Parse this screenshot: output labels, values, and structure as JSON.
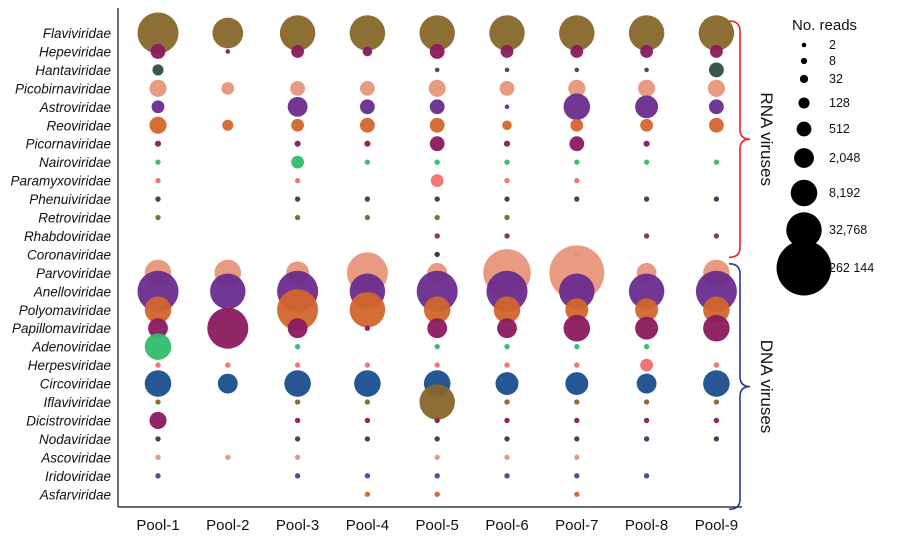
{
  "chart_data": {
    "type": "bubble",
    "title": "",
    "xlabel": "",
    "ylabel": "",
    "x_categories": [
      "Pool-1",
      "Pool-2",
      "Pool-3",
      "Pool-4",
      "Pool-5",
      "Pool-6",
      "Pool-7",
      "Pool-8",
      "Pool-9"
    ],
    "families": [
      {
        "name": "Flaviviridae",
        "group": "RNA",
        "color": "#87662a",
        "reads": [
          65536,
          16384,
          32768,
          32768,
          32768,
          32768,
          32768,
          32768,
          32768
        ]
      },
      {
        "name": "Hepeviridae",
        "group": "RNA",
        "color": "#8b1a5e",
        "reads": [
          512,
          2,
          256,
          64,
          512,
          256,
          256,
          256,
          256
        ]
      },
      {
        "name": "Hantaviridae",
        "group": "RNA",
        "color": "#2e4e48",
        "reads": [
          128,
          0,
          0,
          0,
          2,
          2,
          2,
          2,
          512
        ]
      },
      {
        "name": "Picobirnaviridae",
        "group": "RNA",
        "color": "#e8967a",
        "reads": [
          1024,
          256,
          512,
          512,
          1024,
          512,
          1024,
          1024,
          1024
        ]
      },
      {
        "name": "Astroviridae",
        "group": "RNA",
        "color": "#6a2c8e",
        "reads": [
          256,
          0,
          2048,
          512,
          512,
          2,
          8192,
          4096,
          512
        ]
      },
      {
        "name": "Reoviridae",
        "group": "RNA",
        "color": "#d2652c",
        "reads": [
          1024,
          128,
          256,
          512,
          512,
          64,
          256,
          256,
          512
        ]
      },
      {
        "name": "Picornaviridae",
        "group": "RNA",
        "color": "#8b1a5e",
        "reads": [
          8,
          0,
          8,
          8,
          512,
          8,
          512,
          8,
          0
        ]
      },
      {
        "name": "Nairoviridae",
        "group": "RNA",
        "color": "#2ebd6b",
        "reads": [
          4,
          0,
          256,
          4,
          4,
          4,
          4,
          4,
          4
        ]
      },
      {
        "name": "Paramyxoviridae",
        "group": "RNA",
        "color": "#f07070",
        "reads": [
          4,
          0,
          4,
          0,
          256,
          4,
          4,
          0,
          0
        ]
      },
      {
        "name": "Phenuiviridae",
        "group": "RNA",
        "color": "#2f3d55",
        "reads": [
          4,
          0,
          4,
          4,
          4,
          4,
          4,
          4,
          4
        ]
      },
      {
        "name": "Retroviridae",
        "group": "RNA",
        "color": "#7a6a20",
        "reads": [
          4,
          0,
          4,
          4,
          4,
          4,
          0,
          0,
          0
        ]
      },
      {
        "name": "Rhabdoviridae",
        "group": "RNA",
        "color": "#7a3a3a",
        "reads": [
          0,
          0,
          0,
          0,
          4,
          4,
          0,
          4,
          4
        ]
      },
      {
        "name": "Coronaviridae",
        "group": "RNA",
        "color": "#333333",
        "reads": [
          0,
          0,
          0,
          0,
          4,
          0,
          4,
          0,
          0
        ]
      },
      {
        "name": "Parvoviridae",
        "group": "DNA",
        "color": "#e8967a",
        "reads": [
          8192,
          8192,
          4096,
          65536,
          2048,
          131072,
          262144,
          2048,
          8192
        ]
      },
      {
        "name": "Anelloviridae",
        "group": "DNA",
        "color": "#6a2c8e",
        "reads": [
          65536,
          32768,
          65536,
          32768,
          65536,
          65536,
          32768,
          32768,
          65536
        ]
      },
      {
        "name": "Polyomaviridae",
        "group": "DNA",
        "color": "#d2652c",
        "reads": [
          8192,
          4,
          65536,
          32768,
          8192,
          8192,
          4096,
          4096,
          8192
        ]
      },
      {
        "name": "Papillomaviridae",
        "group": "DNA",
        "color": "#8b1a5e",
        "reads": [
          2048,
          65536,
          2048,
          4,
          2048,
          2048,
          8192,
          4096,
          8192
        ]
      },
      {
        "name": "Adenoviridae",
        "group": "DNA",
        "color": "#2ebd6b",
        "reads": [
          8192,
          0,
          4,
          0,
          4,
          4,
          4,
          4,
          0
        ]
      },
      {
        "name": "Herpesviridae",
        "group": "DNA",
        "color": "#f07070",
        "reads": [
          4,
          4,
          4,
          4,
          4,
          4,
          4,
          256,
          4
        ]
      },
      {
        "name": "Circoviridae",
        "group": "DNA",
        "color": "#1a4e8e",
        "reads": [
          8192,
          2048,
          8192,
          8192,
          8192,
          4096,
          4096,
          2048,
          8192
        ]
      },
      {
        "name": "Iflaviviridae",
        "group": "DNA",
        "color": "#87662a",
        "reads": [
          4,
          0,
          4,
          4,
          32768,
          4,
          4,
          4,
          4
        ]
      },
      {
        "name": "Dicistroviridae",
        "group": "DNA",
        "color": "#8b1a5e",
        "reads": [
          1024,
          0,
          4,
          4,
          4,
          4,
          4,
          4,
          4
        ]
      },
      {
        "name": "Nodaviridae",
        "group": "DNA",
        "color": "#2f3d55",
        "reads": [
          4,
          0,
          4,
          4,
          4,
          4,
          4,
          4,
          4
        ]
      },
      {
        "name": "Ascoviridae",
        "group": "DNA",
        "color": "#e8967a",
        "reads": [
          4,
          4,
          4,
          0,
          4,
          4,
          4,
          0,
          0
        ]
      },
      {
        "name": "Iridoviridae",
        "group": "DNA",
        "color": "#3a4a9a",
        "reads": [
          4,
          0,
          4,
          4,
          4,
          4,
          4,
          4,
          0
        ]
      },
      {
        "name": "Asfarviridae",
        "group": "DNA",
        "color": "#d2652c",
        "reads": [
          0,
          0,
          0,
          4,
          4,
          0,
          4,
          0,
          0
        ]
      }
    ],
    "groups": [
      {
        "name": "RNA viruses",
        "color": "#e8242a",
        "families": "Flaviviridae–Coronaviridae"
      },
      {
        "name": "DNA viruses",
        "color": "#2a3a9a",
        "families": "Parvoviridae–Asfarviridae"
      }
    ],
    "legend": {
      "title": "No. reads",
      "placement": "right",
      "entries": [
        {
          "value": 2,
          "label": "2"
        },
        {
          "value": 8,
          "label": "8"
        },
        {
          "value": 32,
          "label": "32"
        },
        {
          "value": 128,
          "label": "128"
        },
        {
          "value": 512,
          "label": "512"
        },
        {
          "value": 2048,
          "label": "2,048"
        },
        {
          "value": 8192,
          "label": "8,192"
        },
        {
          "value": 32768,
          "label": "32,768"
        },
        {
          "value": 262144,
          "label": "262 144"
        }
      ]
    }
  }
}
